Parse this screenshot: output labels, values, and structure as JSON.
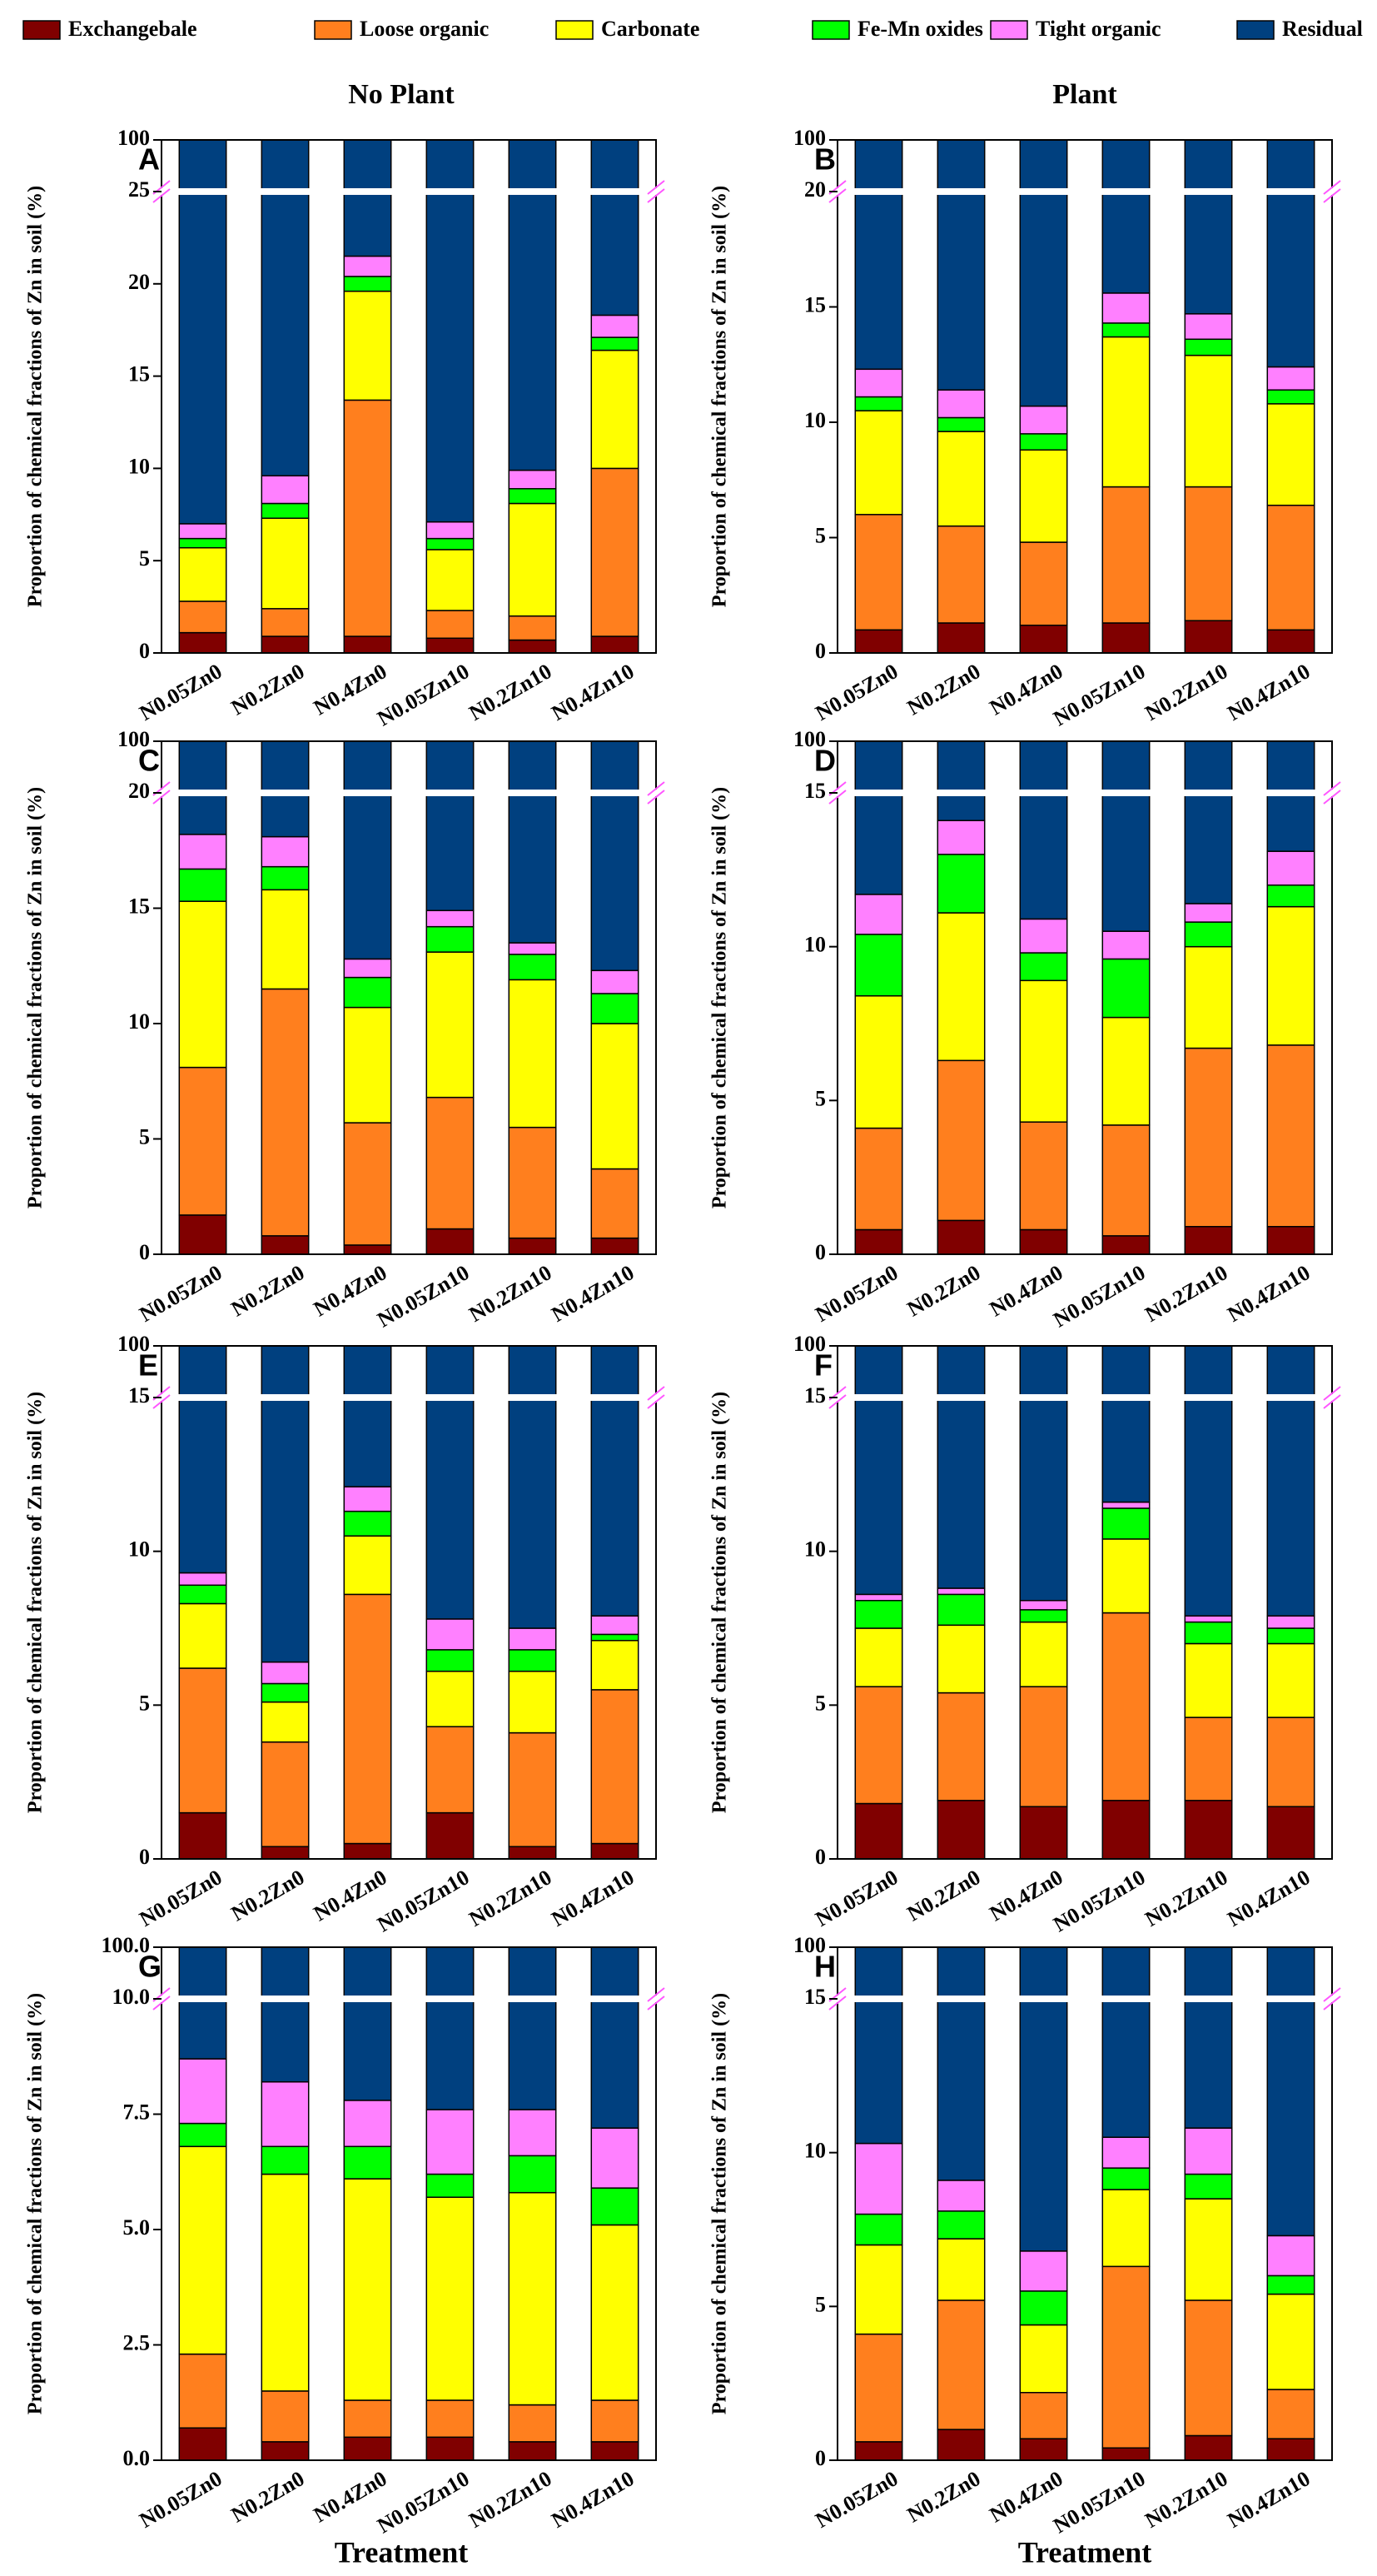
{
  "legend": [
    {
      "name": "Exchangebale",
      "color": "#800000"
    },
    {
      "name": "Loose organic",
      "color": "#ff7f1e"
    },
    {
      "name": "Carbonate",
      "color": "#ffff00"
    },
    {
      "name": "Fe-Mn oxides",
      "color": "#00ff00"
    },
    {
      "name": "Tight organic",
      "color": "#ff80ff"
    },
    {
      "name": "Residual",
      "color": "#00407f"
    }
  ],
  "column_titles": [
    "No Plant",
    "Plant"
  ],
  "y_label": "Proportion of chemical fractions of Zn in soil (%)",
  "x_label": "Treatment",
  "categories": [
    "N0.05Zn0",
    "N0.2Zn0",
    "N0.4Zn0",
    "N0.05Zn10",
    "N0.2Zn10",
    "N0.4Zn10"
  ],
  "chart_data": [
    {
      "type": "bar",
      "panel": "A",
      "ylim": [
        0,
        100
      ],
      "axis_break": 25,
      "yticks": [
        0,
        5,
        10,
        15,
        20,
        25,
        100
      ],
      "series": [
        {
          "values": [
            1.1,
            0.9,
            0.9,
            0.8,
            0.7,
            0.9
          ]
        },
        {
          "values": [
            1.7,
            1.5,
            12.8,
            1.5,
            1.3,
            9.1
          ]
        },
        {
          "values": [
            2.9,
            4.9,
            5.9,
            3.3,
            6.1,
            6.4
          ]
        },
        {
          "values": [
            0.5,
            0.8,
            0.8,
            0.6,
            0.8,
            0.7
          ]
        },
        {
          "values": [
            0.8,
            1.5,
            1.1,
            0.9,
            1.0,
            1.2
          ]
        },
        {
          "values": [
            93.0,
            90.4,
            78.5,
            92.9,
            90.1,
            81.7
          ]
        }
      ]
    },
    {
      "type": "bar",
      "panel": "B",
      "ylim": [
        0,
        100
      ],
      "axis_break": 20,
      "yticks": [
        0,
        5,
        10,
        15,
        20,
        100
      ],
      "series": [
        {
          "values": [
            1.0,
            1.3,
            1.2,
            1.3,
            1.4,
            1.0
          ]
        },
        {
          "values": [
            5.0,
            4.2,
            3.6,
            5.9,
            5.8,
            5.4
          ]
        },
        {
          "values": [
            4.5,
            4.1,
            4.0,
            6.5,
            5.7,
            4.4
          ]
        },
        {
          "values": [
            0.6,
            0.6,
            0.7,
            0.6,
            0.7,
            0.6
          ]
        },
        {
          "values": [
            1.2,
            1.2,
            1.2,
            1.3,
            1.1,
            1.0
          ]
        },
        {
          "values": [
            87.7,
            88.6,
            89.3,
            84.4,
            85.3,
            87.6
          ]
        }
      ]
    },
    {
      "type": "bar",
      "panel": "C",
      "ylim": [
        0,
        100
      ],
      "axis_break": 20,
      "yticks": [
        0,
        5,
        10,
        15,
        20,
        100
      ],
      "series": [
        {
          "values": [
            1.7,
            0.8,
            0.4,
            1.1,
            0.7,
            0.7
          ]
        },
        {
          "values": [
            6.4,
            10.7,
            5.3,
            5.7,
            4.8,
            3.0
          ]
        },
        {
          "values": [
            7.2,
            4.3,
            5.0,
            6.3,
            6.4,
            6.3
          ]
        },
        {
          "values": [
            1.4,
            1.0,
            1.3,
            1.1,
            1.1,
            1.3
          ]
        },
        {
          "values": [
            1.5,
            1.3,
            0.8,
            0.7,
            0.5,
            1.0
          ]
        },
        {
          "values": [
            81.8,
            81.9,
            87.2,
            85.1,
            86.5,
            87.7
          ]
        }
      ]
    },
    {
      "type": "bar",
      "panel": "D",
      "ylim": [
        0,
        100
      ],
      "axis_break": 15,
      "yticks": [
        0,
        5,
        10,
        15,
        100
      ],
      "series": [
        {
          "values": [
            0.8,
            1.1,
            0.8,
            0.6,
            0.9,
            0.9
          ]
        },
        {
          "values": [
            3.3,
            5.2,
            3.5,
            3.6,
            5.8,
            5.9
          ]
        },
        {
          "values": [
            4.3,
            4.8,
            4.6,
            3.5,
            3.3,
            4.5
          ]
        },
        {
          "values": [
            2.0,
            1.9,
            0.9,
            1.9,
            0.8,
            0.7
          ]
        },
        {
          "values": [
            1.3,
            1.1,
            1.1,
            0.9,
            0.6,
            1.1
          ]
        },
        {
          "values": [
            88.3,
            85.9,
            89.1,
            89.5,
            88.6,
            86.9
          ]
        }
      ]
    },
    {
      "type": "bar",
      "panel": "E",
      "ylim": [
        0,
        100
      ],
      "axis_break": 15,
      "yticks": [
        0,
        5,
        10,
        15,
        100
      ],
      "series": [
        {
          "values": [
            1.5,
            0.4,
            0.5,
            1.5,
            0.4,
            0.5
          ]
        },
        {
          "values": [
            4.7,
            3.4,
            8.1,
            2.8,
            3.7,
            5.0
          ]
        },
        {
          "values": [
            2.1,
            1.3,
            1.9,
            1.8,
            2.0,
            1.6
          ]
        },
        {
          "values": [
            0.6,
            0.6,
            0.8,
            0.7,
            0.7,
            0.2
          ]
        },
        {
          "values": [
            0.4,
            0.7,
            0.8,
            1.0,
            0.7,
            0.6
          ]
        },
        {
          "values": [
            90.7,
            93.6,
            87.9,
            92.2,
            92.5,
            92.1
          ]
        }
      ]
    },
    {
      "type": "bar",
      "panel": "F",
      "ylim": [
        0,
        100
      ],
      "axis_break": 15,
      "yticks": [
        0,
        5,
        10,
        15,
        100
      ],
      "series": [
        {
          "values": [
            1.8,
            1.9,
            1.7,
            1.9,
            1.9,
            1.7
          ]
        },
        {
          "values": [
            3.8,
            3.5,
            3.9,
            6.1,
            2.7,
            2.9
          ]
        },
        {
          "values": [
            1.9,
            2.2,
            2.1,
            2.4,
            2.4,
            2.4
          ]
        },
        {
          "values": [
            0.9,
            1.0,
            0.4,
            1.0,
            0.7,
            0.5
          ]
        },
        {
          "values": [
            0.2,
            0.2,
            0.3,
            0.2,
            0.2,
            0.4
          ]
        },
        {
          "values": [
            91.4,
            91.2,
            91.6,
            88.4,
            92.1,
            92.1
          ]
        }
      ]
    },
    {
      "type": "bar",
      "panel": "G",
      "ylim": [
        0,
        100
      ],
      "axis_break": 10,
      "yticks": [
        {
          "value": 0,
          "label": "0.0"
        },
        2.5,
        {
          "value": 5,
          "label": "5.0"
        },
        7.5,
        {
          "value": 10,
          "label": "10.0"
        },
        {
          "value": 100,
          "label": "100.0"
        }
      ],
      "series": [
        {
          "values": [
            0.7,
            0.4,
            0.5,
            0.5,
            0.4,
            0.4
          ]
        },
        {
          "values": [
            1.6,
            1.1,
            0.8,
            0.8,
            0.8,
            0.9
          ]
        },
        {
          "values": [
            4.5,
            4.7,
            4.8,
            4.4,
            4.6,
            3.8
          ]
        },
        {
          "values": [
            0.5,
            0.6,
            0.7,
            0.5,
            0.8,
            0.8
          ]
        },
        {
          "values": [
            1.4,
            1.4,
            1.0,
            1.4,
            1.0,
            1.3
          ]
        },
        {
          "values": [
            91.3,
            91.8,
            92.2,
            92.4,
            92.4,
            92.8
          ]
        }
      ]
    },
    {
      "type": "bar",
      "panel": "H",
      "ylim": [
        0,
        100
      ],
      "axis_break": 15,
      "yticks": [
        0,
        5,
        10,
        15,
        100
      ],
      "series": [
        {
          "values": [
            0.6,
            1.0,
            0.7,
            0.4,
            0.8,
            0.7
          ]
        },
        {
          "values": [
            3.5,
            4.2,
            1.5,
            5.9,
            4.4,
            1.6
          ]
        },
        {
          "values": [
            2.9,
            2.0,
            2.2,
            2.5,
            3.3,
            3.1
          ]
        },
        {
          "values": [
            1.0,
            0.9,
            1.1,
            0.7,
            0.8,
            0.6
          ]
        },
        {
          "values": [
            2.3,
            1.0,
            1.3,
            1.0,
            1.5,
            1.3
          ]
        },
        {
          "values": [
            89.7,
            90.9,
            93.2,
            89.5,
            89.2,
            92.7
          ]
        }
      ]
    }
  ]
}
